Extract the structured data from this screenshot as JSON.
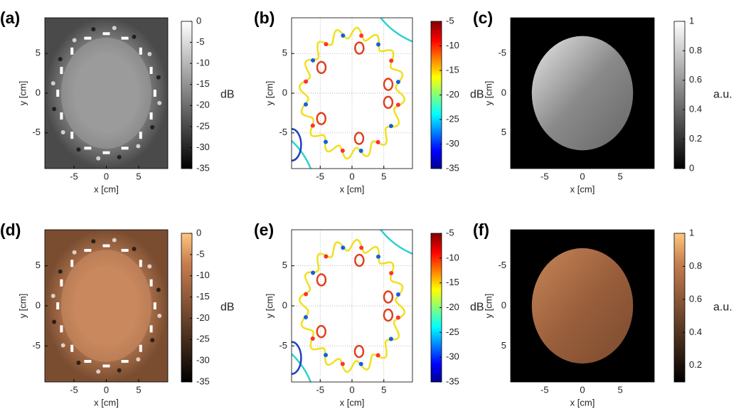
{
  "chart_data": [
    {
      "type": "heatmap",
      "panel": "(a)",
      "xlabel": "x [cm]",
      "ylabel": "y [cm]",
      "xlim": [
        -9.5,
        9.5
      ],
      "ylim": [
        -9.5,
        9.5
      ],
      "xticks": [
        -5,
        0,
        5
      ],
      "yticks": [
        -5,
        0,
        5
      ],
      "colormap": "gray",
      "colorbar": {
        "label": "dB",
        "lim": [
          -35,
          0
        ],
        "ticks": [
          0,
          -5,
          -10,
          -15,
          -20,
          -25,
          -30,
          -35
        ]
      }
    },
    {
      "type": "contour",
      "panel": "(b)",
      "xlabel": "x [cm]",
      "ylabel": "y [cm]",
      "xlim": [
        -9.5,
        9.5
      ],
      "ylim": [
        -9.5,
        9.5
      ],
      "xticks": [
        -5,
        0,
        5
      ],
      "yticks": [
        -5,
        0,
        5
      ],
      "grid": true,
      "colormap": "jet",
      "colorbar": {
        "label": "dB",
        "lim": [
          -35,
          -5
        ],
        "ticks": [
          -5,
          -10,
          -15,
          -20,
          -25,
          -30,
          -35
        ]
      }
    },
    {
      "type": "image",
      "panel": "(c)",
      "xlabel": "x [cm]",
      "ylabel": "y [cm]",
      "xlim": [
        -9.5,
        9.5
      ],
      "ylim": [
        -9.5,
        9.5
      ],
      "y_reversed": true,
      "xticks": [
        -5,
        0,
        5
      ],
      "yticks": [
        -5,
        0,
        5
      ],
      "colormap": "gray",
      "colorbar": {
        "label": "a.u.",
        "lim": [
          0,
          1
        ],
        "ticks": [
          0,
          0.2,
          0.4,
          0.6,
          0.8,
          1
        ]
      }
    },
    {
      "type": "heatmap",
      "panel": "(d)",
      "xlabel": "x [cm]",
      "ylabel": "y [cm]",
      "xlim": [
        -9.5,
        9.5
      ],
      "ylim": [
        -9.5,
        9.5
      ],
      "xticks": [
        -5,
        0,
        5
      ],
      "yticks": [
        -5,
        0,
        5
      ],
      "colormap": "copper",
      "colorbar": {
        "label": "dB",
        "lim": [
          -35,
          0
        ],
        "ticks": [
          0,
          -5,
          -10,
          -15,
          -20,
          -25,
          -30,
          -35
        ]
      }
    },
    {
      "type": "contour",
      "panel": "(e)",
      "xlabel": "x [cm]",
      "ylabel": "y [cm]",
      "xlim": [
        -9.5,
        9.5
      ],
      "ylim": [
        -9.5,
        9.5
      ],
      "xticks": [
        -5,
        0,
        5
      ],
      "yticks": [
        -5,
        0,
        5
      ],
      "grid": true,
      "colormap": "jet",
      "colorbar": {
        "label": "dB",
        "lim": [
          -35,
          -5
        ],
        "ticks": [
          -5,
          -10,
          -15,
          -20,
          -25,
          -30,
          -35
        ]
      }
    },
    {
      "type": "image",
      "panel": "(f)",
      "xlabel": "x [cm]",
      "ylabel": "y [cm]",
      "xlim": [
        -9.5,
        9.5
      ],
      "ylim": [
        -9.5,
        9.5
      ],
      "y_reversed": true,
      "xticks": [
        -5,
        0,
        5
      ],
      "yticks": [
        -5,
        0,
        5
      ],
      "colormap": "copper",
      "colorbar": {
        "label": "a.u.",
        "lim": [
          0.1,
          1
        ],
        "ticks": [
          0.2,
          0.4,
          0.6,
          0.8,
          1
        ]
      }
    }
  ]
}
